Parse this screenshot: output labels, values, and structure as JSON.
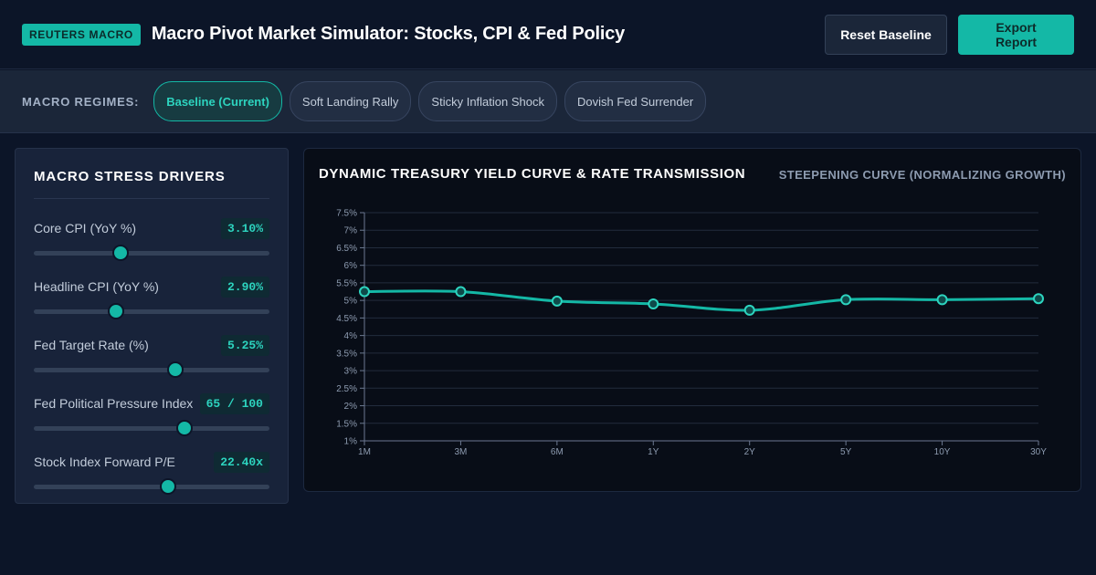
{
  "header": {
    "badge": "REUTERS MACRO",
    "title": "Macro Pivot Market Simulator: Stocks, CPI & Fed Policy",
    "reset_label": "Reset Baseline",
    "export_label": "Export Report"
  },
  "regimes": {
    "label": "MACRO REGIMES:",
    "options": [
      "Baseline (Current)",
      "Soft Landing Rally",
      "Sticky Inflation Shock",
      "Dovish Fed Surrender"
    ],
    "selected": "Baseline (Current)"
  },
  "drivers": {
    "title": "MACRO STRESS DRIVERS",
    "items": [
      {
        "label": "Core CPI (YoY %)",
        "value": "3.10%",
        "level_pct": 37
      },
      {
        "label": "Headline CPI (YoY %)",
        "value": "2.90%",
        "level_pct": 35
      },
      {
        "label": "Fed Target Rate (%)",
        "value": "5.25%",
        "level_pct": 60
      },
      {
        "label": "Fed Political Pressure Index",
        "value": "65 / 100",
        "level_pct": 64
      },
      {
        "label": "Stock Index Forward P/E",
        "value": "22.40x",
        "level_pct": 57
      }
    ]
  },
  "colors": {
    "accent": "#14b8a6",
    "background": "#0c1528",
    "panel": "#18233a"
  },
  "chart": {
    "title": "DYNAMIC TREASURY YIELD CURVE & RATE TRANSMISSION",
    "status": "STEEPENING CURVE (NORMALIZING GROWTH)"
  },
  "chart_data": {
    "type": "line",
    "categories": [
      "1M",
      "3M",
      "6M",
      "1Y",
      "2Y",
      "5Y",
      "10Y",
      "30Y"
    ],
    "series": [
      {
        "values": [
          5.25,
          5.25,
          4.98,
          4.9,
          4.72,
          5.02,
          5.02,
          5.05
        ]
      }
    ],
    "y_ticks": [
      "1%",
      "1.5%",
      "2%",
      "2.5%",
      "3%",
      "3.5%",
      "4%",
      "4.5%",
      "5%",
      "5.5%",
      "6%",
      "6.5%",
      "7%",
      "7.5%"
    ],
    "ylim": [
      1,
      7.5
    ],
    "grid": true,
    "legend": "none"
  }
}
